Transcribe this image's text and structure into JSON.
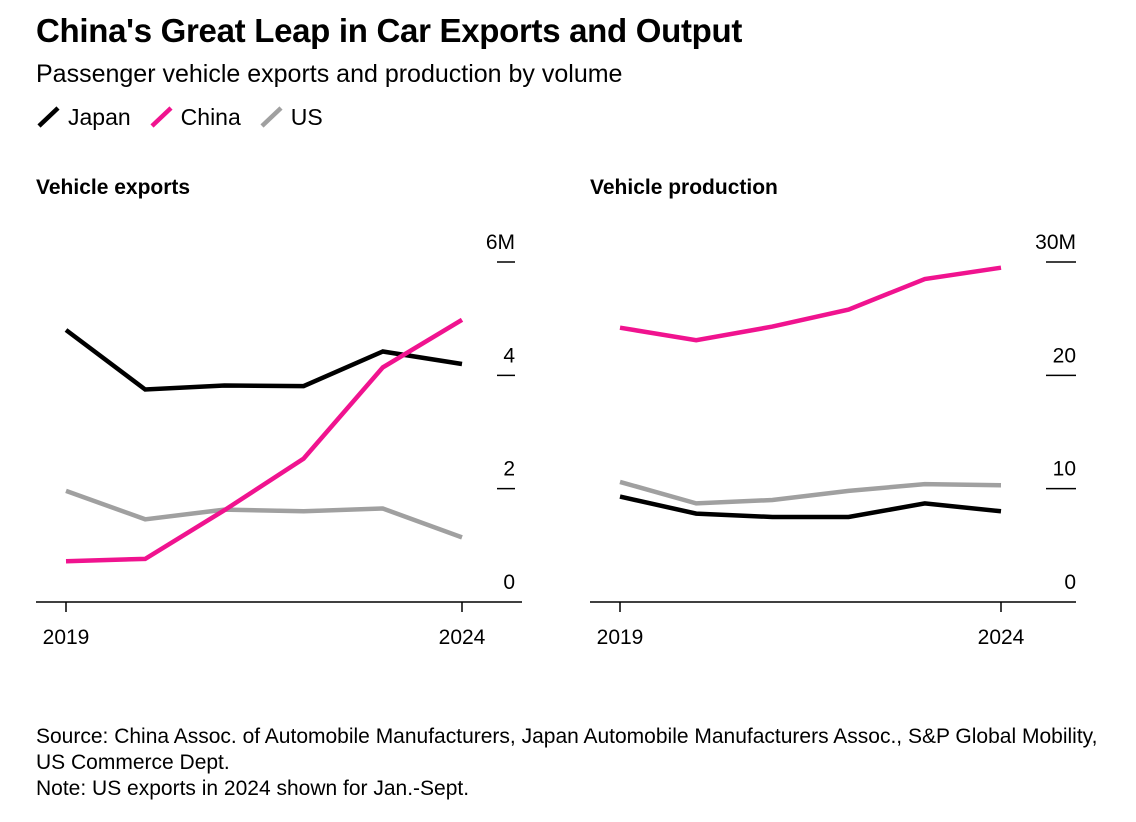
{
  "title": "China's Great Leap in Car Exports and Output",
  "subtitle": "Passenger vehicle exports and production by volume",
  "colors": {
    "Japan": "#000000",
    "China": "#f0138f",
    "US": "#a0a0a0"
  },
  "legend": [
    {
      "name": "Japan"
    },
    {
      "name": "China"
    },
    {
      "name": "US"
    }
  ],
  "chart_data": [
    {
      "type": "line",
      "title": "Vehicle exports",
      "x": [
        2019,
        2020,
        2021,
        2022,
        2023,
        2024
      ],
      "x_tick_labels": [
        "2019",
        "2024"
      ],
      "ylim": [
        0,
        6
      ],
      "y_ticks": [
        0,
        2,
        4,
        6
      ],
      "y_tick_labels": [
        "0",
        "2",
        "4",
        "6M"
      ],
      "legend_position": "top-left",
      "series": [
        {
          "name": "Japan",
          "values": [
            4.8,
            3.75,
            3.82,
            3.81,
            4.42,
            4.2
          ]
        },
        {
          "name": "China",
          "values": [
            0.72,
            0.76,
            1.62,
            2.53,
            4.14,
            4.98
          ]
        },
        {
          "name": "US",
          "values": [
            1.96,
            1.46,
            1.63,
            1.6,
            1.65,
            1.14
          ]
        }
      ]
    },
    {
      "type": "line",
      "title": "Vehicle production",
      "x": [
        2019,
        2020,
        2021,
        2022,
        2023,
        2024
      ],
      "x_tick_labels": [
        "2019",
        "2024"
      ],
      "ylim": [
        0,
        30
      ],
      "y_ticks": [
        0,
        10,
        20,
        30
      ],
      "y_tick_labels": [
        "0",
        "10",
        "20",
        "30M"
      ],
      "series": [
        {
          "name": "Japan",
          "values": [
            9.3,
            7.8,
            7.5,
            7.5,
            8.7,
            8.0
          ]
        },
        {
          "name": "China",
          "values": [
            24.2,
            23.1,
            24.3,
            25.8,
            28.5,
            29.5
          ]
        },
        {
          "name": "US",
          "values": [
            10.6,
            8.7,
            9.0,
            9.8,
            10.4,
            10.3
          ]
        }
      ]
    }
  ],
  "footer": {
    "source": "Source: China Assoc. of Automobile Manufacturers, Japan Automobile Manufacturers Assoc., S&P Global Mobility, US Commerce Dept.",
    "note": "Note: US exports in 2024 shown for Jan.-Sept."
  }
}
